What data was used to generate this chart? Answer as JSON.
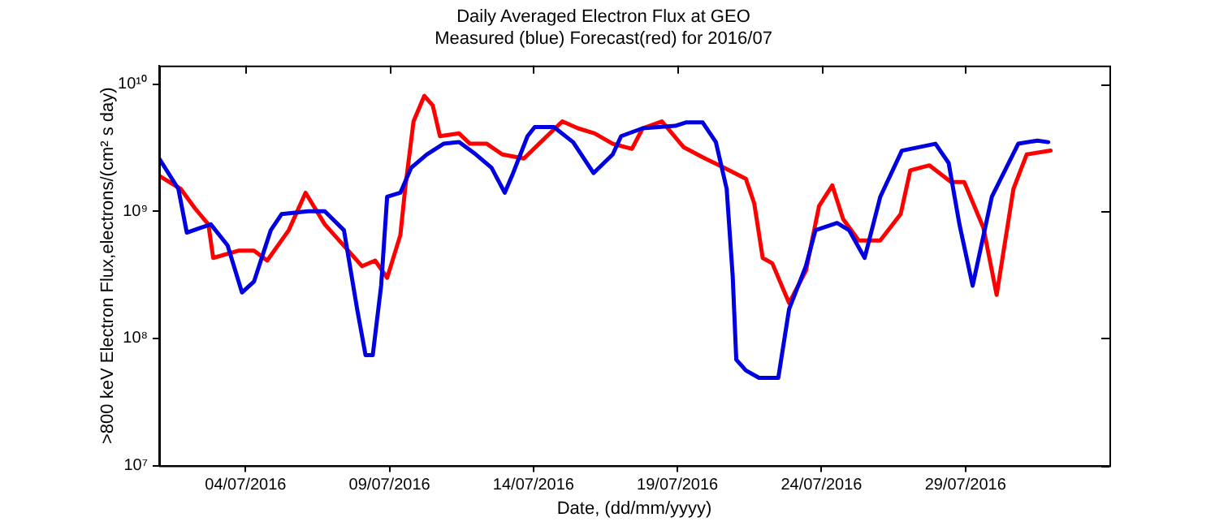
{
  "chart_data": {
    "type": "line",
    "title": "Daily Averaged Electron Flux at GEO",
    "subtitle": "Measured (blue) Forecast(red) for 2016/07",
    "xlabel": "Date, (dd/mm/yyyy)",
    "ylabel": ">800 keV Electron Flux,electrons/(cm² s day)",
    "log": "y",
    "grid": false,
    "legend": false,
    "marker": "none",
    "line_style": "solid",
    "xlim": [
      "2016-07-01",
      "2016-08-03"
    ],
    "xticks": [
      {
        "value": "2016-07-04",
        "label": "04/07/2016"
      },
      {
        "value": "2016-07-09",
        "label": "09/07/2016"
      },
      {
        "value": "2016-07-14",
        "label": "14/07/2016"
      },
      {
        "value": "2016-07-19",
        "label": "19/07/2016"
      },
      {
        "value": "2016-07-24",
        "label": "24/07/2016"
      },
      {
        "value": "2016-07-29",
        "label": "29/07/2016"
      }
    ],
    "ylim": [
      10000000,
      14000000000
    ],
    "yticks": [
      {
        "value": 10000000,
        "label": "10⁷"
      },
      {
        "value": 100000000,
        "label": "10⁸"
      },
      {
        "value": 1000000000,
        "label": "10⁹"
      },
      {
        "value": 10000000000,
        "label": "10¹⁰"
      }
    ],
    "series": [
      {
        "color": "#0000e0",
        "x": [
          "2016-07-01T00:00",
          "2016-07-01T16:00",
          "2016-07-01T23:00",
          "2016-07-02T10:00",
          "2016-07-02T19:00",
          "2016-07-03T09:00",
          "2016-07-03T21:00",
          "2016-07-04T07:00",
          "2016-07-04T21:00",
          "2016-07-05T06:00",
          "2016-07-06T04:00",
          "2016-07-06T18:00",
          "2016-07-07T10:00",
          "2016-07-07T21:00",
          "2016-07-08T04:00",
          "2016-07-08T10:00",
          "2016-07-08T17:00",
          "2016-07-08T22:00",
          "2016-07-09T09:00",
          "2016-07-09T18:00",
          "2016-07-10T07:00",
          "2016-07-10T21:00",
          "2016-07-11T10:00",
          "2016-07-12T00:00",
          "2016-07-12T13:00",
          "2016-07-13T00:00",
          "2016-07-13T07:00",
          "2016-07-13T19:00",
          "2016-07-14T01:00",
          "2016-07-14T17:00",
          "2016-07-15T09:00",
          "2016-07-16T02:00",
          "2016-07-16T18:00",
          "2016-07-17T01:00",
          "2016-07-17T19:00",
          "2016-07-18T22:00",
          "2016-07-19T07:00",
          "2016-07-19T21:00",
          "2016-07-20T08:00",
          "2016-07-20T17:00",
          "2016-07-20T22:00",
          "2016-07-21T01:00",
          "2016-07-21T09:00",
          "2016-07-21T20:00",
          "2016-07-22T12:00",
          "2016-07-22T21:00",
          "2016-07-23T11:00",
          "2016-07-23T19:00",
          "2016-07-24T13:00",
          "2016-07-24T23:00",
          "2016-07-25T12:00",
          "2016-07-26T01:00",
          "2016-07-26T19:00",
          "2016-07-27T23:00",
          "2016-07-28T10:00",
          "2016-07-28T19:00",
          "2016-07-29T06:00",
          "2016-07-29T22:00",
          "2016-07-30T20:00",
          "2016-07-31T12:00",
          "2016-07-31T21:00"
        ],
        "values": [
          2600000000,
          1500000000,
          680000000,
          740000000,
          790000000,
          540000000,
          230000000,
          280000000,
          710000000,
          950000000,
          1000000000,
          1000000000,
          710000000,
          170000000,
          74000000,
          74000000,
          260000000,
          1300000000,
          1400000000,
          2200000000,
          2800000000,
          3400000000,
          3500000000,
          2800000000,
          2200000000,
          1400000000,
          2000000000,
          3900000000,
          4600000000,
          4600000000,
          3500000000,
          2000000000,
          2800000000,
          3900000000,
          4500000000,
          4700000000,
          5000000000,
          5000000000,
          3500000000,
          1500000000,
          310000000,
          68000000,
          56000000,
          49000000,
          49000000,
          170000000,
          370000000,
          710000000,
          810000000,
          710000000,
          430000000,
          1300000000,
          3000000000,
          3400000000,
          2400000000,
          790000000,
          260000000,
          1300000000,
          3400000000,
          3600000000,
          3500000000
        ]
      },
      {
        "color": "#ff0000",
        "x": [
          "2016-07-01T00:00",
          "2016-07-01T18:00",
          "2016-07-02T06:00",
          "2016-07-02T17:00",
          "2016-07-02T21:00",
          "2016-07-03T18:00",
          "2016-07-04T07:00",
          "2016-07-04T18:00",
          "2016-07-05T12:00",
          "2016-07-06T02:00",
          "2016-07-06T18:00",
          "2016-07-07T12:00",
          "2016-07-08T01:00",
          "2016-07-08T12:00",
          "2016-07-08T22:00",
          "2016-07-09T09:00",
          "2016-07-09T13:00",
          "2016-07-09T20:00",
          "2016-07-10T05:00",
          "2016-07-10T12:00",
          "2016-07-10T18:00",
          "2016-07-11T10:00",
          "2016-07-11T19:00",
          "2016-07-12T09:00",
          "2016-07-12T22:00",
          "2016-07-13T16:00",
          "2016-07-14T06:00",
          "2016-07-15T00:00",
          "2016-07-15T13:00",
          "2016-07-16T03:00",
          "2016-07-16T18:00",
          "2016-07-17T10:00",
          "2016-07-17T19:00",
          "2016-07-18T11:00",
          "2016-07-19T05:00",
          "2016-07-19T23:00",
          "2016-07-20T15:00",
          "2016-07-21T09:00",
          "2016-07-21T16:00",
          "2016-07-21T23:00",
          "2016-07-22T07:00",
          "2016-07-22T21:00",
          "2016-07-23T11:00",
          "2016-07-23T22:00",
          "2016-07-24T09:00",
          "2016-07-24T18:00",
          "2016-07-25T07:00",
          "2016-07-26T01:00",
          "2016-07-26T18:00",
          "2016-07-27T02:00",
          "2016-07-27T18:00",
          "2016-07-28T12:00",
          "2016-07-28T23:00",
          "2016-07-29T15:00",
          "2016-07-30T02:00",
          "2016-07-30T16:00",
          "2016-07-31T03:00",
          "2016-07-31T23:00"
        ],
        "values": [
          1900000000,
          1500000000,
          1050000000,
          790000000,
          430000000,
          490000000,
          490000000,
          410000000,
          710000000,
          1400000000,
          790000000,
          510000000,
          370000000,
          410000000,
          300000000,
          650000000,
          1500000000,
          5100000000,
          8100000000,
          6800000000,
          3900000000,
          4100000000,
          3400000000,
          3400000000,
          2800000000,
          2600000000,
          3500000000,
          5100000000,
          4500000000,
          4100000000,
          3400000000,
          3100000000,
          4500000000,
          5100000000,
          3200000000,
          2600000000,
          2200000000,
          1800000000,
          1150000000,
          430000000,
          390000000,
          190000000,
          340000000,
          1100000000,
          1600000000,
          870000000,
          590000000,
          590000000,
          950000000,
          2100000000,
          2300000000,
          1700000000,
          1700000000,
          740000000,
          220000000,
          1500000000,
          2800000000,
          3000000000
        ]
      }
    ]
  }
}
